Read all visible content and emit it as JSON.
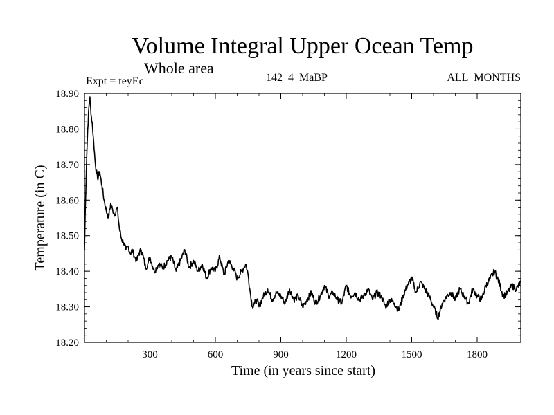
{
  "chart_data": {
    "type": "line",
    "title": "Volume Integral Upper Ocean Temp",
    "subtitle": "Whole area",
    "expt_label": "Expt = teyEc",
    "center_label": "142_4_MaBP",
    "right_label": "ALL_MONTHS",
    "xlabel": "Time (in years since start)",
    "ylabel": "Temperature (in C)",
    "xlim": [
      0,
      2000
    ],
    "ylim": [
      18.2,
      18.9
    ],
    "xticks": [
      300,
      600,
      900,
      1200,
      1500,
      1800
    ],
    "xtick_labels": [
      "300",
      "600",
      "900",
      "1200",
      "1500",
      "1800"
    ],
    "yticks": [
      18.2,
      18.3,
      18.4,
      18.5,
      18.6,
      18.7,
      18.8,
      18.9
    ],
    "ytick_labels": [
      "18.20",
      "18.30",
      "18.40",
      "18.50",
      "18.60",
      "18.70",
      "18.80",
      "18.90"
    ],
    "series": [
      {
        "name": "Expt = teyEc",
        "x": [
          0,
          5,
          10,
          15,
          20,
          25,
          30,
          35,
          40,
          50,
          60,
          70,
          80,
          90,
          100,
          110,
          120,
          130,
          140,
          150,
          160,
          170,
          180,
          190,
          200,
          210,
          220,
          230,
          240,
          250,
          260,
          270,
          280,
          290,
          300,
          320,
          340,
          360,
          380,
          400,
          420,
          440,
          460,
          480,
          500,
          520,
          540,
          560,
          580,
          600,
          620,
          640,
          660,
          680,
          700,
          720,
          740,
          750,
          760,
          770,
          780,
          790,
          800,
          820,
          840,
          860,
          880,
          900,
          920,
          940,
          960,
          980,
          1000,
          1020,
          1040,
          1060,
          1080,
          1100,
          1120,
          1140,
          1160,
          1180,
          1200,
          1220,
          1240,
          1260,
          1280,
          1300,
          1320,
          1340,
          1360,
          1380,
          1400,
          1420,
          1440,
          1460,
          1480,
          1500,
          1520,
          1540,
          1560,
          1580,
          1600,
          1620,
          1640,
          1660,
          1680,
          1700,
          1720,
          1740,
          1760,
          1780,
          1800,
          1820,
          1840,
          1860,
          1880,
          1900,
          1920,
          1940,
          1960,
          1980,
          2000
        ],
        "y": [
          18.46,
          18.6,
          18.72,
          18.8,
          18.86,
          18.89,
          18.84,
          18.82,
          18.78,
          18.7,
          18.66,
          18.68,
          18.64,
          18.6,
          18.57,
          18.55,
          18.59,
          18.57,
          18.56,
          18.58,
          18.52,
          18.49,
          18.48,
          18.46,
          18.47,
          18.45,
          18.46,
          18.44,
          18.43,
          18.45,
          18.46,
          18.44,
          18.41,
          18.42,
          18.44,
          18.4,
          18.42,
          18.41,
          18.43,
          18.44,
          18.4,
          18.43,
          18.46,
          18.41,
          18.43,
          18.4,
          18.42,
          18.38,
          18.41,
          18.4,
          18.44,
          18.39,
          18.43,
          18.41,
          18.38,
          18.4,
          18.42,
          18.39,
          18.34,
          18.3,
          18.31,
          18.32,
          18.3,
          18.33,
          18.35,
          18.32,
          18.34,
          18.33,
          18.31,
          18.35,
          18.32,
          18.33,
          18.3,
          18.32,
          18.34,
          18.31,
          18.33,
          18.36,
          18.33,
          18.34,
          18.32,
          18.31,
          18.36,
          18.33,
          18.34,
          18.32,
          18.33,
          18.35,
          18.32,
          18.34,
          18.33,
          18.3,
          18.32,
          18.31,
          18.29,
          18.33,
          18.36,
          18.38,
          18.34,
          18.37,
          18.35,
          18.33,
          18.3,
          18.27,
          18.31,
          18.33,
          18.34,
          18.32,
          18.35,
          18.33,
          18.31,
          18.35,
          18.33,
          18.32,
          18.36,
          18.38,
          18.4,
          18.37,
          18.33,
          18.34,
          18.36,
          18.35,
          18.37
        ]
      }
    ]
  }
}
